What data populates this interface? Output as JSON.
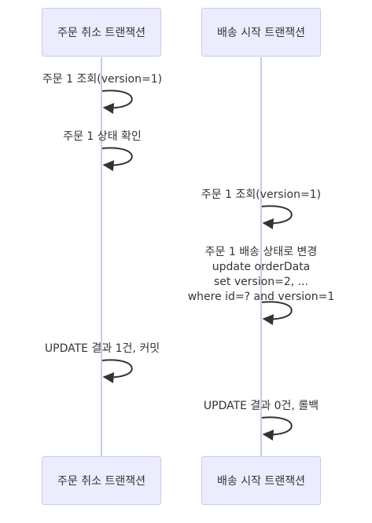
{
  "participants": {
    "cancel": "주문 취소 트랜잭션",
    "delivery": "배송 시작 트랜잭션"
  },
  "messages": [
    {
      "participant": "cancel",
      "lines": [
        "주문 1 조회(version=1)"
      ]
    },
    {
      "participant": "cancel",
      "lines": [
        "주문 1 상태 확인"
      ]
    },
    {
      "participant": "delivery",
      "lines": [
        "주문 1 조회(version=1)"
      ]
    },
    {
      "participant": "delivery",
      "lines": [
        "주문 1 배송 상태로 변경",
        "update orderData",
        "set version=2, ...",
        "where id=? and version=1"
      ]
    },
    {
      "participant": "cancel",
      "lines": [
        "UPDATE 결과 1건, 커밋"
      ]
    },
    {
      "participant": "delivery",
      "lines": [
        "UPDATE 결과 0건, 롤백"
      ]
    }
  ],
  "colors": {
    "actor_fill": "#ECECFF",
    "actor_border": "#C9C9F0",
    "lifeline": "#C9C9F0",
    "arrow": "#333333",
    "text": "#333333"
  }
}
